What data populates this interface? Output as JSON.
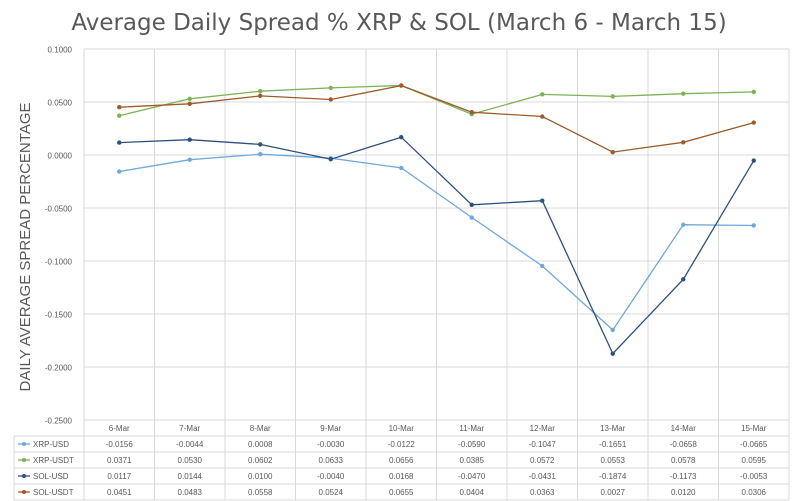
{
  "chart_data": {
    "type": "line",
    "title": "Average Daily Spread % XRP & SOL (March 6 - March 15)",
    "ylabel": "DAILY AVERAGE SPREAD PERCENTAGE",
    "xlabel": "",
    "ylim": [
      -0.25,
      0.1
    ],
    "yticks": [
      "0.1000",
      "0.0500",
      "0.0000",
      "-0.0500",
      "-0.1000",
      "-0.1500",
      "-0.2000",
      "-0.2500"
    ],
    "ytick_values": [
      0.1,
      0.05,
      0.0,
      -0.05,
      -0.1,
      -0.15,
      -0.2,
      -0.25
    ],
    "grid": true,
    "legend": "data-table-below",
    "categories": [
      "6-Mar",
      "7-Mar",
      "8-Mar",
      "9-Mar",
      "10-Mar",
      "11-Mar",
      "12-Mar",
      "13-Mar",
      "14-Mar",
      "15-Mar"
    ],
    "series": [
      {
        "name": "XRP-USD",
        "color": "#6fa8dc",
        "values": [
          -0.0156,
          -0.0044,
          0.0008,
          -0.003,
          -0.0122,
          -0.059,
          -0.1047,
          -0.1651,
          -0.0658,
          -0.0665
        ],
        "labels": [
          "-0.0156",
          "-0.0044",
          "0.0008",
          "-0.0030",
          "-0.0122",
          "-0.0590",
          "-0.1047",
          "-0.1651",
          "-0.0658",
          "-0.0665"
        ]
      },
      {
        "name": "XRP-USDT",
        "color": "#7cb356",
        "values": [
          0.0371,
          0.053,
          0.0602,
          0.0633,
          0.0656,
          0.0385,
          0.0572,
          0.0553,
          0.0578,
          0.0595
        ],
        "labels": [
          "0.0371",
          "0.0530",
          "0.0602",
          "0.0633",
          "0.0656",
          "0.0385",
          "0.0572",
          "0.0553",
          "0.0578",
          "0.0595"
        ]
      },
      {
        "name": "SOL-USD",
        "color": "#2f4f7f",
        "values": [
          0.0117,
          0.0144,
          0.01,
          -0.004,
          0.0168,
          -0.047,
          -0.0431,
          -0.1874,
          -0.1173,
          -0.0053
        ],
        "labels": [
          "0.0117",
          "0.0144",
          "0.0100",
          "-0.0040",
          "0.0168",
          "-0.0470",
          "-0.0431",
          "-0.1874",
          "-0.1173",
          "-0.0053"
        ]
      },
      {
        "name": "SOL-USDT",
        "color": "#9e5a2a",
        "values": [
          0.0451,
          0.0483,
          0.0558,
          0.0524,
          0.0655,
          0.0404,
          0.0363,
          0.0027,
          0.012,
          0.0306
        ],
        "labels": [
          "0.0451",
          "0.0483",
          "0.0558",
          "0.0524",
          "0.0655",
          "0.0404",
          "0.0363",
          "0.0027",
          "0.0120",
          "0.0306"
        ]
      }
    ]
  },
  "colors": {
    "grid": "#d9d9d9",
    "text": "#595959",
    "title": "#595959"
  }
}
